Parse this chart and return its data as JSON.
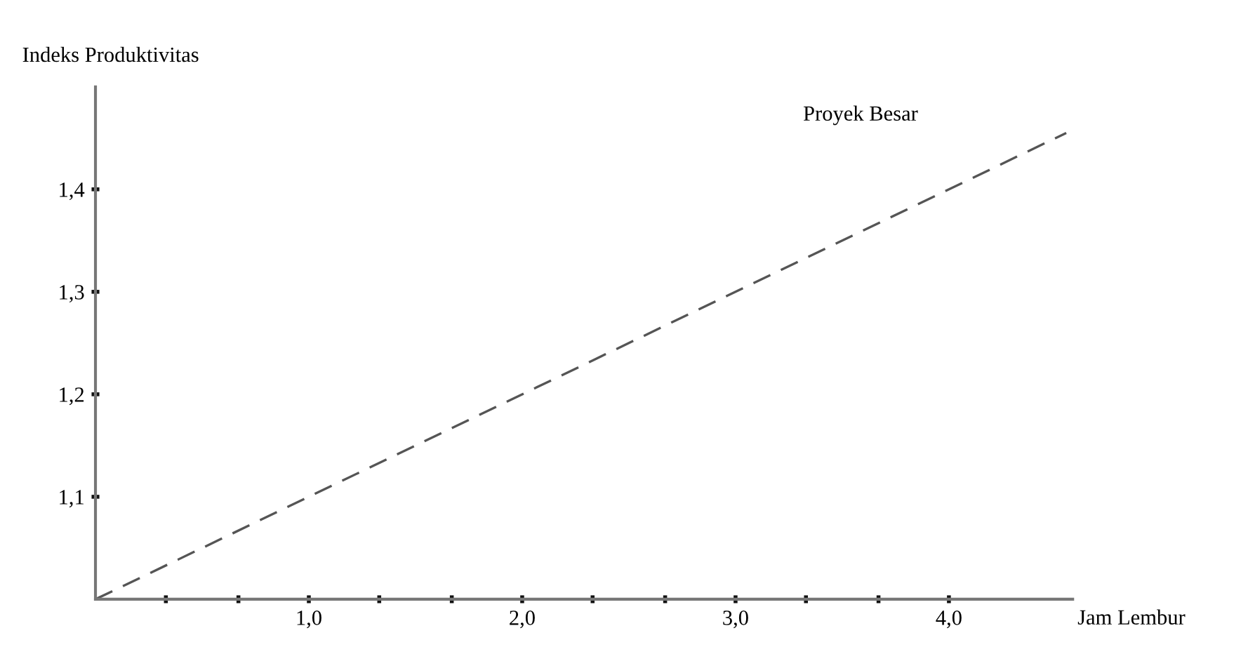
{
  "chart_data": {
    "type": "line",
    "xlabel": "Jam Lembur",
    "ylabel": "Indeks Produktivitas",
    "x": [
      0,
      4.55
    ],
    "series": [
      {
        "name": "Proyek Besar",
        "color": "#555555",
        "values": [
          1.0,
          1.455
        ],
        "line_style": "dashed"
      }
    ],
    "xlim": [
      0,
      4.58
    ],
    "ylim": [
      1.0,
      1.5
    ],
    "xticks": [
      {
        "value": 0.33,
        "label": null
      },
      {
        "value": 0.67,
        "label": null
      },
      {
        "value": 1.0,
        "label": "1,0"
      },
      {
        "value": 1.33,
        "label": null
      },
      {
        "value": 1.67,
        "label": null
      },
      {
        "value": 2.0,
        "label": "2,0"
      },
      {
        "value": 2.33,
        "label": null
      },
      {
        "value": 2.67,
        "label": null
      },
      {
        "value": 3.0,
        "label": "3,0"
      },
      {
        "value": 3.33,
        "label": null
      },
      {
        "value": 3.67,
        "label": null
      },
      {
        "value": 4.0,
        "label": "4,0"
      }
    ],
    "yticks": [
      {
        "value": 1.1,
        "label": "1,1"
      },
      {
        "value": 1.2,
        "label": "1,2"
      },
      {
        "value": 1.3,
        "label": "1,3"
      },
      {
        "value": 1.4,
        "label": "1,4"
      }
    ],
    "grid": false,
    "legend": false
  }
}
